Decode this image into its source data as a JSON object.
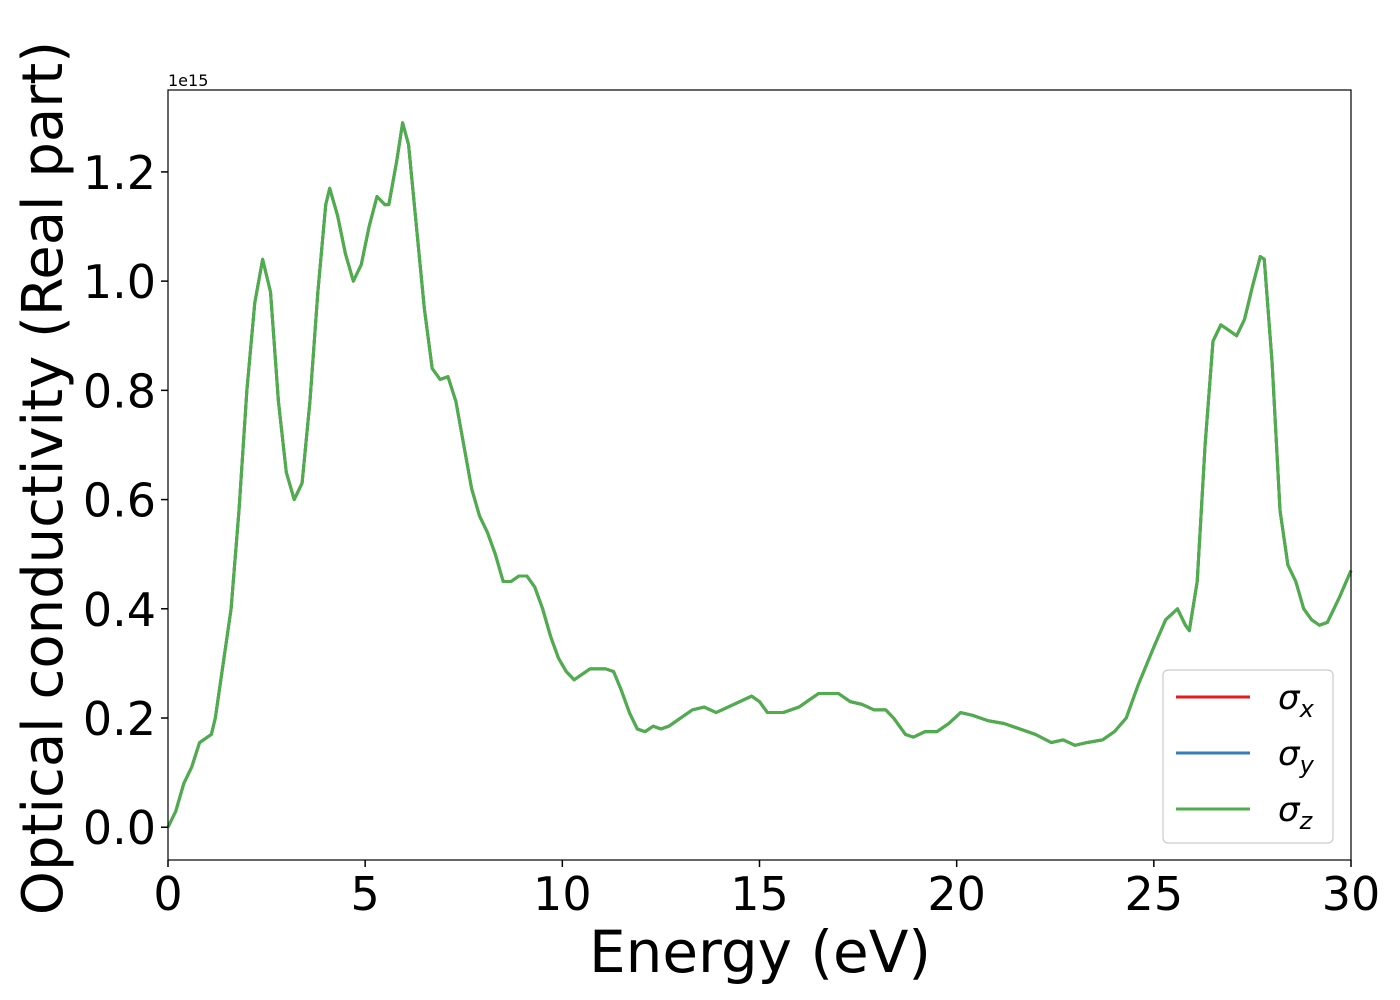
{
  "chart_data": {
    "type": "line",
    "xlabel": "Energy (eV)",
    "ylabel": "Optical conductivity (Real part)",
    "y_offset_label": "1e15",
    "x": [
      0,
      0.2,
      0.4,
      0.6,
      0.8,
      1.0,
      1.1,
      1.2,
      1.4,
      1.6,
      1.8,
      2.0,
      2.2,
      2.4,
      2.6,
      2.8,
      3.0,
      3.2,
      3.4,
      3.6,
      3.8,
      4.0,
      4.1,
      4.3,
      4.5,
      4.7,
      4.9,
      5.1,
      5.3,
      5.5,
      5.6,
      5.8,
      5.95,
      6.1,
      6.3,
      6.5,
      6.7,
      6.9,
      7.1,
      7.3,
      7.5,
      7.7,
      7.9,
      8.1,
      8.3,
      8.5,
      8.7,
      8.9,
      9.1,
      9.3,
      9.5,
      9.7,
      9.9,
      10.1,
      10.3,
      10.5,
      10.7,
      10.9,
      11.1,
      11.3,
      11.5,
      11.7,
      11.9,
      12.1,
      12.3,
      12.5,
      12.7,
      12.9,
      13.1,
      13.3,
      13.6,
      13.9,
      14.2,
      14.5,
      14.8,
      15.0,
      15.2,
      15.6,
      16.0,
      16.3,
      16.5,
      17.0,
      17.3,
      17.6,
      17.9,
      18.2,
      18.4,
      18.7,
      18.9,
      19.2,
      19.5,
      19.8,
      20.1,
      20.4,
      20.8,
      21.2,
      21.6,
      22.0,
      22.4,
      22.7,
      23.0,
      23.3,
      23.7,
      24.0,
      24.3,
      24.6,
      25.0,
      25.3,
      25.6,
      25.8,
      25.9,
      26.1,
      26.3,
      26.5,
      26.7,
      26.9,
      27.1,
      27.3,
      27.5,
      27.7,
      27.8,
      28.0,
      28.2,
      28.4,
      28.6,
      28.8,
      29.0,
      29.2,
      29.4,
      29.7,
      30.0
    ],
    "series": [
      {
        "name": "σx",
        "color": "#e41a1c",
        "values": [
          0,
          0.03,
          0.08,
          0.11,
          0.155,
          0.165,
          0.17,
          0.2,
          0.3,
          0.4,
          0.58,
          0.8,
          0.96,
          1.04,
          0.98,
          0.78,
          0.65,
          0.6,
          0.63,
          0.78,
          0.98,
          1.14,
          1.17,
          1.12,
          1.05,
          1.0,
          1.03,
          1.1,
          1.155,
          1.14,
          1.14,
          1.22,
          1.29,
          1.25,
          1.1,
          0.95,
          0.84,
          0.82,
          0.825,
          0.78,
          0.7,
          0.62,
          0.57,
          0.54,
          0.5,
          0.45,
          0.45,
          0.46,
          0.46,
          0.44,
          0.4,
          0.35,
          0.31,
          0.285,
          0.27,
          0.28,
          0.29,
          0.29,
          0.29,
          0.285,
          0.25,
          0.21,
          0.18,
          0.175,
          0.185,
          0.18,
          0.185,
          0.195,
          0.205,
          0.215,
          0.22,
          0.21,
          0.22,
          0.23,
          0.24,
          0.23,
          0.21,
          0.21,
          0.22,
          0.235,
          0.245,
          0.245,
          0.23,
          0.225,
          0.215,
          0.215,
          0.2,
          0.17,
          0.165,
          0.175,
          0.175,
          0.19,
          0.21,
          0.205,
          0.195,
          0.19,
          0.18,
          0.17,
          0.155,
          0.16,
          0.15,
          0.155,
          0.16,
          0.175,
          0.2,
          0.26,
          0.33,
          0.38,
          0.4,
          0.37,
          0.36,
          0.45,
          0.7,
          0.89,
          0.92,
          0.91,
          0.9,
          0.93,
          0.99,
          1.045,
          1.04,
          0.85,
          0.58,
          0.48,
          0.45,
          0.4,
          0.38,
          0.37,
          0.375,
          0.42,
          0.47
        ]
      },
      {
        "name": "σy",
        "color": "#377eb8",
        "values": [
          0,
          0.03,
          0.08,
          0.11,
          0.155,
          0.165,
          0.17,
          0.2,
          0.3,
          0.4,
          0.58,
          0.8,
          0.96,
          1.04,
          0.98,
          0.78,
          0.65,
          0.6,
          0.63,
          0.78,
          0.98,
          1.14,
          1.17,
          1.12,
          1.05,
          1.0,
          1.03,
          1.1,
          1.155,
          1.14,
          1.14,
          1.22,
          1.29,
          1.25,
          1.1,
          0.95,
          0.84,
          0.82,
          0.825,
          0.78,
          0.7,
          0.62,
          0.57,
          0.54,
          0.5,
          0.45,
          0.45,
          0.46,
          0.46,
          0.44,
          0.4,
          0.35,
          0.31,
          0.285,
          0.27,
          0.28,
          0.29,
          0.29,
          0.29,
          0.285,
          0.25,
          0.21,
          0.18,
          0.175,
          0.185,
          0.18,
          0.185,
          0.195,
          0.205,
          0.215,
          0.22,
          0.21,
          0.22,
          0.23,
          0.24,
          0.23,
          0.21,
          0.21,
          0.22,
          0.235,
          0.245,
          0.245,
          0.23,
          0.225,
          0.215,
          0.215,
          0.2,
          0.17,
          0.165,
          0.175,
          0.175,
          0.19,
          0.21,
          0.205,
          0.195,
          0.19,
          0.18,
          0.17,
          0.155,
          0.16,
          0.15,
          0.155,
          0.16,
          0.175,
          0.2,
          0.26,
          0.33,
          0.38,
          0.4,
          0.37,
          0.36,
          0.45,
          0.7,
          0.89,
          0.92,
          0.91,
          0.9,
          0.93,
          0.99,
          1.045,
          1.04,
          0.85,
          0.58,
          0.48,
          0.45,
          0.4,
          0.38,
          0.37,
          0.375,
          0.42,
          0.47
        ]
      },
      {
        "name": "σz",
        "color": "#4daf4a",
        "values": [
          0,
          0.03,
          0.08,
          0.11,
          0.155,
          0.165,
          0.17,
          0.2,
          0.3,
          0.4,
          0.58,
          0.8,
          0.96,
          1.04,
          0.98,
          0.78,
          0.65,
          0.6,
          0.63,
          0.78,
          0.98,
          1.14,
          1.17,
          1.12,
          1.05,
          1.0,
          1.03,
          1.1,
          1.155,
          1.14,
          1.14,
          1.22,
          1.29,
          1.25,
          1.1,
          0.95,
          0.84,
          0.82,
          0.825,
          0.78,
          0.7,
          0.62,
          0.57,
          0.54,
          0.5,
          0.45,
          0.45,
          0.46,
          0.46,
          0.44,
          0.4,
          0.35,
          0.31,
          0.285,
          0.27,
          0.28,
          0.29,
          0.29,
          0.29,
          0.285,
          0.25,
          0.21,
          0.18,
          0.175,
          0.185,
          0.18,
          0.185,
          0.195,
          0.205,
          0.215,
          0.22,
          0.21,
          0.22,
          0.23,
          0.24,
          0.23,
          0.21,
          0.21,
          0.22,
          0.235,
          0.245,
          0.245,
          0.23,
          0.225,
          0.215,
          0.215,
          0.2,
          0.17,
          0.165,
          0.175,
          0.175,
          0.19,
          0.21,
          0.205,
          0.195,
          0.19,
          0.18,
          0.17,
          0.155,
          0.16,
          0.15,
          0.155,
          0.16,
          0.175,
          0.2,
          0.26,
          0.33,
          0.38,
          0.4,
          0.37,
          0.36,
          0.45,
          0.7,
          0.89,
          0.92,
          0.91,
          0.9,
          0.93,
          0.99,
          1.045,
          1.04,
          0.85,
          0.58,
          0.48,
          0.45,
          0.4,
          0.38,
          0.37,
          0.375,
          0.42,
          0.47
        ]
      }
    ],
    "xlim": [
      0,
      30
    ],
    "xticks": [
      0,
      5,
      10,
      15,
      20,
      25,
      30
    ],
    "ylim": [
      -0.06,
      1.35
    ],
    "yticks": [
      {
        "value": 0.0,
        "label": "0.0"
      },
      0.2,
      0.4,
      0.6,
      0.8,
      {
        "value": 1.0,
        "label": "1.0"
      },
      1.2
    ],
    "grid": false,
    "legend": "lower right"
  }
}
